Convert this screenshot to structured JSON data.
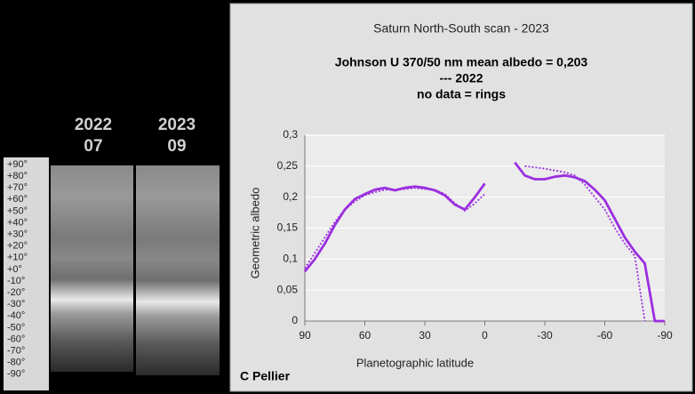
{
  "panel": {
    "columns": [
      {
        "year": "2022",
        "month": "07"
      },
      {
        "year": "2023",
        "month": "09"
      }
    ],
    "latitude_scale": [
      "+90°",
      "+80°",
      "+70°",
      "+60°",
      "+50°",
      "+40°",
      "+30°",
      "+20°",
      "+10°",
      "+0°",
      "-10°",
      "-20°",
      "-30°",
      "-40°",
      "-50°",
      "-60°",
      "-70°",
      "-80°",
      "-90°"
    ],
    "credit": "C Pellier"
  },
  "chart_data": {
    "type": "line",
    "title": "Saturn North-South scan - 2023",
    "subtitle": [
      "Johnson U 370/50 nm mean albedo = 0,203",
      "--- 2022",
      "no data = rings"
    ],
    "x_label": "Planetographic latitude",
    "y_label": "Geometric albedo",
    "x": [
      90,
      85,
      80,
      75,
      70,
      65,
      60,
      55,
      50,
      45,
      40,
      35,
      30,
      25,
      20,
      15,
      10,
      5,
      0,
      -5,
      -10,
      -15,
      -20,
      -25,
      -30,
      -35,
      -40,
      -45,
      -50,
      -55,
      -60,
      -65,
      -70,
      -75,
      -80,
      -85,
      -90
    ],
    "xlim": [
      90,
      -90
    ],
    "xticks": [
      90,
      60,
      30,
      0,
      -30,
      -60,
      -90
    ],
    "ylim": [
      0,
      0.3
    ],
    "yticks": [
      {
        "value": 0,
        "label": "0"
      },
      {
        "value": 0.05,
        "label": "0,05"
      },
      {
        "value": 0.1,
        "label": "0,1"
      },
      {
        "value": 0.15,
        "label": "0,15"
      },
      {
        "value": 0.2,
        "label": "0,2"
      },
      {
        "value": 0.25,
        "label": "0,25"
      },
      {
        "value": 0.3,
        "label": "0,3"
      }
    ],
    "grid": true,
    "series": [
      {
        "color": "#9b2fe0",
        "style": "solid",
        "values": [
          0.08,
          0.1,
          0.125,
          0.155,
          0.18,
          0.197,
          0.205,
          0.212,
          0.215,
          0.211,
          0.215,
          0.217,
          0.215,
          0.211,
          0.203,
          0.188,
          0.18,
          0.2,
          0.222,
          null,
          null,
          0.256,
          0.235,
          0.229,
          0.229,
          0.233,
          0.235,
          0.232,
          0.226,
          0.212,
          0.195,
          0.165,
          0.135,
          0.112,
          0.093,
          0,
          0
        ]
      },
      {
        "color": "#9b2fe0",
        "style": "dotted",
        "values": [
          0.085,
          0.11,
          0.135,
          0.16,
          0.18,
          0.193,
          0.203,
          0.208,
          0.212,
          0.212,
          0.213,
          0.215,
          0.213,
          0.212,
          0.205,
          0.19,
          0.178,
          0.19,
          0.205,
          null,
          null,
          null,
          0.25,
          0.248,
          0.246,
          0.243,
          0.24,
          0.235,
          0.22,
          0.2,
          0.18,
          0.15,
          0.125,
          0.105,
          0,
          null,
          null
        ]
      }
    ]
  }
}
